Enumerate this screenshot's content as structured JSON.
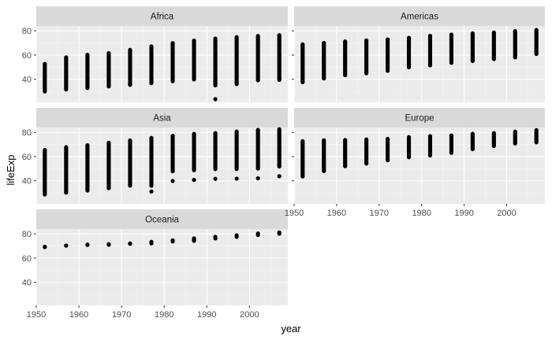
{
  "chart_data": {
    "type": "scatter",
    "facet_variable": "continent",
    "xlabel": "year",
    "ylabel": "lifeExp",
    "xlim": [
      1950,
      2009
    ],
    "ylim": [
      21,
      84
    ],
    "x_ticks": [
      "1950",
      "1960",
      "1970",
      "1980",
      "1990",
      "2000"
    ],
    "y_ticks": [
      "40",
      "60",
      "80"
    ],
    "years": [
      1952,
      1957,
      1962,
      1967,
      1972,
      1977,
      1982,
      1987,
      1992,
      1997,
      2002,
      2007
    ],
    "facets": [
      {
        "name": "Africa",
        "ranges": [
          [
            30.0,
            52.7
          ],
          [
            31.6,
            58.1
          ],
          [
            32.8,
            60.2
          ],
          [
            34.1,
            61.6
          ],
          [
            35.4,
            64.3
          ],
          [
            36.8,
            67.1
          ],
          [
            38.4,
            69.9
          ],
          [
            39.9,
            71.9
          ],
          [
            23.6,
            73.6
          ],
          [
            36.1,
            74.8
          ],
          [
            39.2,
            75.7
          ],
          [
            39.6,
            76.4
          ]
        ],
        "extra_points": []
      },
      {
        "name": "Americas",
        "ranges": [
          [
            37.6,
            68.8
          ],
          [
            40.7,
            70.0
          ],
          [
            43.4,
            71.3
          ],
          [
            45.0,
            72.1
          ],
          [
            47.0,
            72.9
          ],
          [
            49.9,
            74.2
          ],
          [
            51.5,
            75.8
          ],
          [
            53.6,
            76.9
          ],
          [
            55.1,
            77.9
          ],
          [
            56.7,
            78.6
          ],
          [
            58.1,
            79.8
          ],
          [
            60.9,
            80.7
          ]
        ],
        "extra_points": []
      },
      {
        "name": "Asia",
        "ranges": [
          [
            28.8,
            65.4
          ],
          [
            30.3,
            67.8
          ],
          [
            32.0,
            69.4
          ],
          [
            34.0,
            71.4
          ],
          [
            36.1,
            73.4
          ],
          [
            31.2,
            75.4
          ],
          [
            39.9,
            77.1
          ],
          [
            40.8,
            78.7
          ],
          [
            41.7,
            79.4
          ],
          [
            41.8,
            80.7
          ],
          [
            42.1,
            82.0
          ],
          [
            43.8,
            82.6
          ]
        ],
        "extra_points": []
      },
      {
        "name": "Europe",
        "ranges": [
          [
            43.6,
            72.7
          ],
          [
            48.1,
            73.5
          ],
          [
            52.1,
            73.7
          ],
          [
            54.3,
            74.2
          ],
          [
            57.0,
            74.7
          ],
          [
            59.5,
            76.1
          ],
          [
            61.0,
            76.9
          ],
          [
            63.1,
            77.4
          ],
          [
            66.1,
            78.8
          ],
          [
            68.8,
            79.4
          ],
          [
            70.8,
            80.6
          ],
          [
            71.8,
            81.8
          ]
        ],
        "extra_points": []
      },
      {
        "name": "Oceania",
        "ranges": [
          [
            69.1,
            69.4
          ],
          [
            70.3,
            70.4
          ],
          [
            70.9,
            71.2
          ],
          [
            71.1,
            71.5
          ],
          [
            71.9,
            72.2
          ],
          [
            72.2,
            73.5
          ],
          [
            73.8,
            74.7
          ],
          [
            74.3,
            76.3
          ],
          [
            76.3,
            77.6
          ],
          [
            77.6,
            78.8
          ],
          [
            79.1,
            80.4
          ],
          [
            80.2,
            81.2
          ]
        ],
        "extra_points": []
      }
    ]
  }
}
